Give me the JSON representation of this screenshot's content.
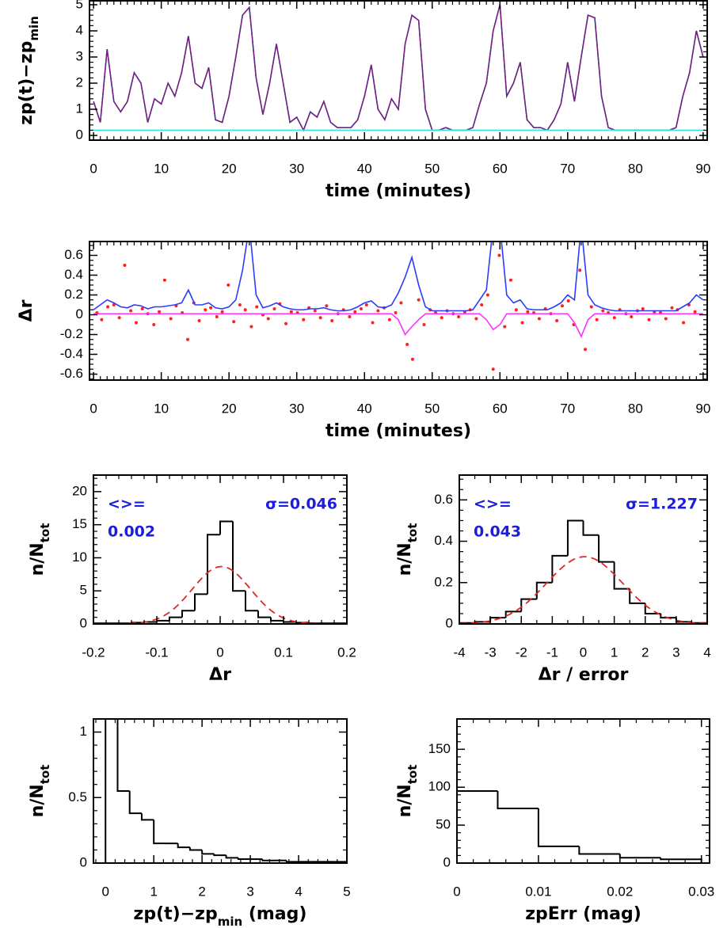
{
  "chart_data": [
    {
      "type": "line",
      "xlabel": [
        {
          "text": "time (minutes)"
        }
      ],
      "ylabel": [
        {
          "text": "zp(t)−zp"
        },
        {
          "text": "min",
          "subscript": true
        }
      ],
      "xlim": [
        -0.6,
        90.6
      ],
      "ylim": [
        -0.18,
        5.15
      ],
      "xticks": [
        0,
        10,
        20,
        30,
        40,
        50,
        60,
        70,
        80,
        90
      ],
      "yticks": [
        0,
        1,
        2,
        3,
        4,
        5
      ],
      "x": [
        0,
        1,
        2,
        3,
        4,
        5,
        6,
        7,
        8,
        9,
        10,
        11,
        12,
        13,
        14,
        15,
        16,
        17,
        18,
        19,
        20,
        21,
        22,
        23,
        24,
        25,
        26,
        27,
        28,
        29,
        30,
        31,
        32,
        33,
        34,
        35,
        36,
        37,
        38,
        39,
        40,
        41,
        42,
        43,
        44,
        45,
        46,
        47,
        48,
        49,
        50,
        51,
        52,
        53,
        54,
        55,
        56,
        57,
        58,
        59,
        60,
        61,
        62,
        63,
        64,
        65,
        66,
        67,
        68,
        69,
        70,
        71,
        72,
        73,
        74,
        75,
        76,
        77,
        78,
        79,
        80,
        81,
        82,
        83,
        84,
        85,
        86,
        87,
        88,
        89,
        90
      ],
      "series": [
        {
          "color": "#2a3cff",
          "style": "line",
          "values": [
            1.3,
            0.5,
            3.3,
            1.3,
            0.9,
            1.3,
            2.4,
            2.0,
            0.5,
            1.4,
            1.2,
            2.0,
            1.5,
            2.4,
            3.8,
            2.0,
            1.8,
            2.6,
            0.6,
            0.5,
            1.5,
            3.0,
            4.6,
            4.9,
            2.2,
            0.8,
            2.0,
            3.5,
            2.0,
            0.5,
            0.7,
            0.2,
            0.9,
            0.7,
            1.3,
            0.5,
            0.3,
            0.3,
            0.3,
            0.6,
            1.5,
            2.7,
            1.0,
            0.6,
            1.4,
            1.0,
            3.5,
            4.6,
            4.4,
            1.0,
            0.2,
            0.2,
            0.3,
            0.2,
            0.2,
            0.2,
            0.3,
            1.2,
            2.0,
            4.0,
            5.0,
            1.5,
            2.0,
            2.8,
            0.6,
            0.3,
            0.3,
            0.2,
            0.6,
            1.2,
            2.8,
            1.3,
            3.0,
            4.6,
            4.5,
            1.5,
            0.3,
            0.2,
            0.2,
            0.2,
            0.2,
            0.2,
            0.2,
            0.2,
            0.2,
            0.2,
            0.3,
            1.5,
            2.4,
            4.0,
            3.0
          ]
        },
        {
          "color": "#7a1f6e",
          "style": "line",
          "values": [
            1.3,
            0.5,
            3.3,
            1.3,
            0.9,
            1.3,
            2.4,
            2.0,
            0.5,
            1.4,
            1.2,
            2.0,
            1.5,
            2.4,
            3.8,
            2.0,
            1.8,
            2.6,
            0.6,
            0.5,
            1.5,
            3.0,
            4.6,
            4.9,
            2.2,
            0.8,
            2.0,
            3.5,
            2.0,
            0.5,
            0.7,
            0.2,
            0.9,
            0.7,
            1.3,
            0.5,
            0.3,
            0.3,
            0.3,
            0.6,
            1.5,
            2.7,
            1.0,
            0.6,
            1.4,
            1.0,
            3.5,
            4.6,
            4.4,
            1.0,
            0.2,
            0.2,
            0.3,
            0.2,
            0.2,
            0.2,
            0.3,
            1.2,
            2.0,
            4.0,
            5.0,
            1.5,
            2.0,
            2.8,
            0.6,
            0.3,
            0.3,
            0.2,
            0.6,
            1.2,
            2.8,
            1.3,
            3.0,
            4.6,
            4.5,
            1.5,
            0.3,
            0.2,
            0.2,
            0.2,
            0.2,
            0.2,
            0.2,
            0.2,
            0.2,
            0.2,
            0.3,
            1.5,
            2.4,
            4.0,
            3.0
          ]
        },
        {
          "color": "#2ee6e0",
          "style": "line",
          "x": [
            0,
            90
          ],
          "values": [
            0.2,
            0.2
          ]
        }
      ]
    },
    {
      "type": "line",
      "xlabel": [
        {
          "text": "time (minutes)"
        }
      ],
      "ylabel": [
        {
          "text": "Δr"
        }
      ],
      "xlim": [
        -0.6,
        90.6
      ],
      "ylim": [
        -0.66,
        0.74
      ],
      "xticks": [
        0,
        10,
        20,
        30,
        40,
        50,
        60,
        70,
        80,
        90
      ],
      "yticks": [
        -0.6,
        -0.4,
        -0.2,
        0,
        0.2,
        0.4,
        0.6
      ],
      "x": [
        0,
        1,
        2,
        3,
        4,
        5,
        6,
        7,
        8,
        9,
        10,
        11,
        12,
        13,
        14,
        15,
        16,
        17,
        18,
        19,
        20,
        21,
        22,
        23,
        24,
        25,
        26,
        27,
        28,
        29,
        30,
        31,
        32,
        33,
        34,
        35,
        36,
        37,
        38,
        39,
        40,
        41,
        42,
        43,
        44,
        45,
        46,
        47,
        48,
        49,
        50,
        51,
        52,
        53,
        54,
        55,
        56,
        57,
        58,
        59,
        60,
        61,
        62,
        63,
        64,
        65,
        66,
        67,
        68,
        69,
        70,
        71,
        72,
        73,
        74,
        75,
        76,
        77,
        78,
        79,
        80,
        81,
        82,
        83,
        84,
        85,
        86,
        87,
        88,
        89,
        90
      ],
      "series": [
        {
          "color": "#ff2020",
          "style": "points",
          "x": [
            0.5,
            1.2,
            2.1,
            3.0,
            3.8,
            4.6,
            5.5,
            6.3,
            7.2,
            8.0,
            8.9,
            9.7,
            10.5,
            11.4,
            12.2,
            13.1,
            13.9,
            14.8,
            15.6,
            16.5,
            17.3,
            18.2,
            19.0,
            19.9,
            20.7,
            21.6,
            22.4,
            23.3,
            24.1,
            25.0,
            25.8,
            26.7,
            27.5,
            28.4,
            29.2,
            30.1,
            31.0,
            31.8,
            32.7,
            33.5,
            34.4,
            35.2,
            36.1,
            36.9,
            37.8,
            38.6,
            39.5,
            40.3,
            41.2,
            42.0,
            42.9,
            43.7,
            44.6,
            45.4,
            46.3,
            47.1,
            48.0,
            48.8,
            49.7,
            50.5,
            51.4,
            52.2,
            53.1,
            53.9,
            54.8,
            55.6,
            56.5,
            57.3,
            58.2,
            59.0,
            59.9,
            60.7,
            61.6,
            62.4,
            63.3,
            64.1,
            65.0,
            65.8,
            66.7,
            67.5,
            68.4,
            69.2,
            70.1,
            70.9,
            71.8,
            72.6,
            73.5,
            74.3,
            75.2,
            76.0,
            76.9,
            77.7,
            78.6,
            79.4,
            80.3,
            81.1,
            82.0,
            82.8,
            83.7,
            84.5,
            85.4,
            86.2,
            87.1,
            87.9,
            88.8
          ],
          "values": [
            0.02,
            -0.05,
            0.08,
            0.1,
            -0.03,
            0.5,
            0.04,
            -0.08,
            0.06,
            0.01,
            -0.1,
            0.03,
            0.35,
            -0.04,
            0.09,
            0.02,
            -0.25,
            0.12,
            -0.06,
            0.05,
            0.07,
            -0.02,
            0.03,
            0.3,
            -0.07,
            0.1,
            0.05,
            -0.12,
            0.08,
            0.0,
            -0.04,
            0.06,
            0.11,
            -0.09,
            0.03,
            0.02,
            -0.05,
            0.07,
            0.04,
            -0.03,
            0.09,
            -0.06,
            0.01,
            0.05,
            -0.02,
            0.03,
            0.06,
            0.1,
            -0.08,
            0.04,
            0.07,
            -0.05,
            0.02,
            0.12,
            -0.3,
            -0.45,
            0.15,
            -0.1,
            0.05,
            0.02,
            -0.03,
            0.04,
            0.01,
            -0.02,
            0.03,
            0.05,
            -0.04,
            0.1,
            0.2,
            -0.55,
            0.6,
            -0.12,
            0.35,
            0.05,
            -0.08,
            0.03,
            0.02,
            -0.04,
            0.06,
            0.01,
            -0.06,
            0.09,
            0.14,
            -0.1,
            0.45,
            -0.35,
            0.08,
            -0.05,
            0.04,
            0.02,
            -0.03,
            0.05,
            0.01,
            -0.02,
            0.04,
            0.06,
            -0.05,
            0.03,
            0.02,
            -0.04,
            0.07,
            0.05,
            -0.08,
            0.1,
            0.03
          ]
        },
        {
          "color": "#ff30ff",
          "style": "line",
          "x": [
            0,
            44,
            45,
            46,
            47,
            48,
            49,
            57,
            58,
            59,
            60,
            61,
            70,
            71,
            72,
            73,
            74,
            90
          ],
          "values": [
            0.01,
            0.01,
            -0.05,
            -0.2,
            -0.12,
            -0.05,
            0.01,
            0.01,
            -0.05,
            -0.15,
            -0.1,
            0.01,
            0.01,
            -0.08,
            -0.22,
            -0.05,
            0.01,
            0.01
          ]
        },
        {
          "color": "#2a3cff",
          "style": "line",
          "values": [
            0.05,
            0.1,
            0.15,
            0.12,
            0.08,
            0.07,
            0.1,
            0.09,
            0.06,
            0.08,
            0.08,
            0.09,
            0.1,
            0.12,
            0.25,
            0.1,
            0.1,
            0.12,
            0.07,
            0.06,
            0.08,
            0.15,
            0.45,
            0.9,
            0.2,
            0.07,
            0.09,
            0.12,
            0.08,
            0.06,
            0.05,
            0.05,
            0.06,
            0.06,
            0.07,
            0.05,
            0.04,
            0.04,
            0.05,
            0.08,
            0.12,
            0.14,
            0.08,
            0.07,
            0.1,
            0.22,
            0.38,
            0.58,
            0.3,
            0.08,
            0.04,
            0.04,
            0.04,
            0.04,
            0.04,
            0.04,
            0.05,
            0.15,
            0.25,
            0.9,
            0.9,
            0.2,
            0.12,
            0.15,
            0.06,
            0.05,
            0.05,
            0.05,
            0.08,
            0.12,
            0.2,
            0.15,
            0.9,
            0.2,
            0.1,
            0.07,
            0.05,
            0.04,
            0.04,
            0.04,
            0.04,
            0.04,
            0.04,
            0.04,
            0.04,
            0.04,
            0.04,
            0.08,
            0.12,
            0.2,
            0.15
          ]
        }
      ]
    },
    {
      "type": "histogram",
      "xlabel": [
        {
          "text": "Δr"
        }
      ],
      "ylabel": [
        {
          "text": "n/N"
        },
        {
          "text": "tot",
          "subscript": true
        }
      ],
      "xlim": [
        -0.2,
        0.2
      ],
      "ylim": [
        0,
        22.5
      ],
      "xticks": [
        -0.2,
        -0.1,
        0,
        0.1,
        0.2
      ],
      "yticks": [
        0,
        5,
        10,
        15,
        20
      ],
      "color": "#000000",
      "bins": [
        -0.2,
        -0.18,
        -0.16,
        -0.14,
        -0.12,
        -0.1,
        -0.08,
        -0.06,
        -0.04,
        -0.02,
        0,
        0.02,
        0.04,
        0.06,
        0.08,
        0.1,
        0.12,
        0.14,
        0.16,
        0.18,
        0.2
      ],
      "counts": [
        0.1,
        0.1,
        0.1,
        0.2,
        0.3,
        0.5,
        1.0,
        2.0,
        4.5,
        13.5,
        15.5,
        5.0,
        2.0,
        1.0,
        0.5,
        0.3,
        0.2,
        0.1,
        0.1,
        0.1
      ],
      "stats": {
        "mean_text": "<>=",
        "mean": 0.002,
        "sigma_text": "σ=0.046",
        "sigma": 0.046,
        "fit_color": "#e02828"
      }
    },
    {
      "type": "histogram",
      "xlabel": [
        {
          "text": "Δr / error"
        }
      ],
      "ylabel": [
        {
          "text": "n/N"
        },
        {
          "text": "tot",
          "subscript": true
        }
      ],
      "xlim": [
        -4,
        4
      ],
      "ylim": [
        0,
        0.72
      ],
      "xticks": [
        -4,
        -3,
        -2,
        -1,
        0,
        1,
        2,
        3,
        4
      ],
      "yticks": [
        0,
        0.2,
        0.4,
        0.6
      ],
      "color": "#000000",
      "bins": [
        -4,
        -3.5,
        -3,
        -2.5,
        -2,
        -1.5,
        -1,
        -0.5,
        0,
        0.5,
        1,
        1.5,
        2,
        2.5,
        3,
        3.5,
        4
      ],
      "counts": [
        0.005,
        0.01,
        0.03,
        0.06,
        0.12,
        0.2,
        0.33,
        0.5,
        0.43,
        0.3,
        0.17,
        0.1,
        0.05,
        0.03,
        0.01,
        0.005
      ],
      "stats": {
        "mean_text": "<>=",
        "mean": 0.043,
        "sigma_text": "σ=1.227",
        "sigma": 1.227,
        "fit_color": "#e02828"
      }
    },
    {
      "type": "histogram",
      "xlabel": [
        {
          "text": "zp(t)−zp"
        },
        {
          "text": "min",
          "subscript": true
        },
        {
          "text": " (mag)"
        }
      ],
      "ylabel": [
        {
          "text": "n/N"
        },
        {
          "text": "tot",
          "subscript": true
        }
      ],
      "xlim": [
        -0.25,
        5
      ],
      "ylim": [
        0,
        1.1
      ],
      "xticks": [
        0,
        1,
        2,
        3,
        4,
        5
      ],
      "yticks": [
        0,
        0.5,
        1
      ],
      "color": "#000000",
      "bins": [
        0,
        0.25,
        0.5,
        0.75,
        1,
        1.25,
        1.5,
        1.75,
        2,
        2.25,
        2.5,
        2.75,
        3,
        3.25,
        3.5,
        3.75,
        4,
        4.25,
        4.5,
        4.75,
        5
      ],
      "counts": [
        1.1,
        0.55,
        0.38,
        0.33,
        0.15,
        0.15,
        0.12,
        0.1,
        0.07,
        0.06,
        0.04,
        0.03,
        0.03,
        0.02,
        0.02,
        0.01,
        0.01,
        0.01,
        0.01,
        0.01
      ]
    },
    {
      "type": "histogram",
      "xlabel": [
        {
          "text": "zpErr (mag)"
        }
      ],
      "ylabel": [
        {
          "text": "n/N"
        },
        {
          "text": "tot",
          "subscript": true
        }
      ],
      "xlim": [
        0,
        0.031
      ],
      "ylim": [
        0,
        190
      ],
      "xticks": [
        0,
        0.01,
        0.02,
        0.03
      ],
      "yticks": [
        0,
        50,
        100,
        150
      ],
      "color": "#000000",
      "bins": [
        0,
        0.005,
        0.01,
        0.015,
        0.02,
        0.025,
        0.03
      ],
      "counts": [
        95,
        72,
        22,
        12,
        7,
        5
      ]
    }
  ]
}
